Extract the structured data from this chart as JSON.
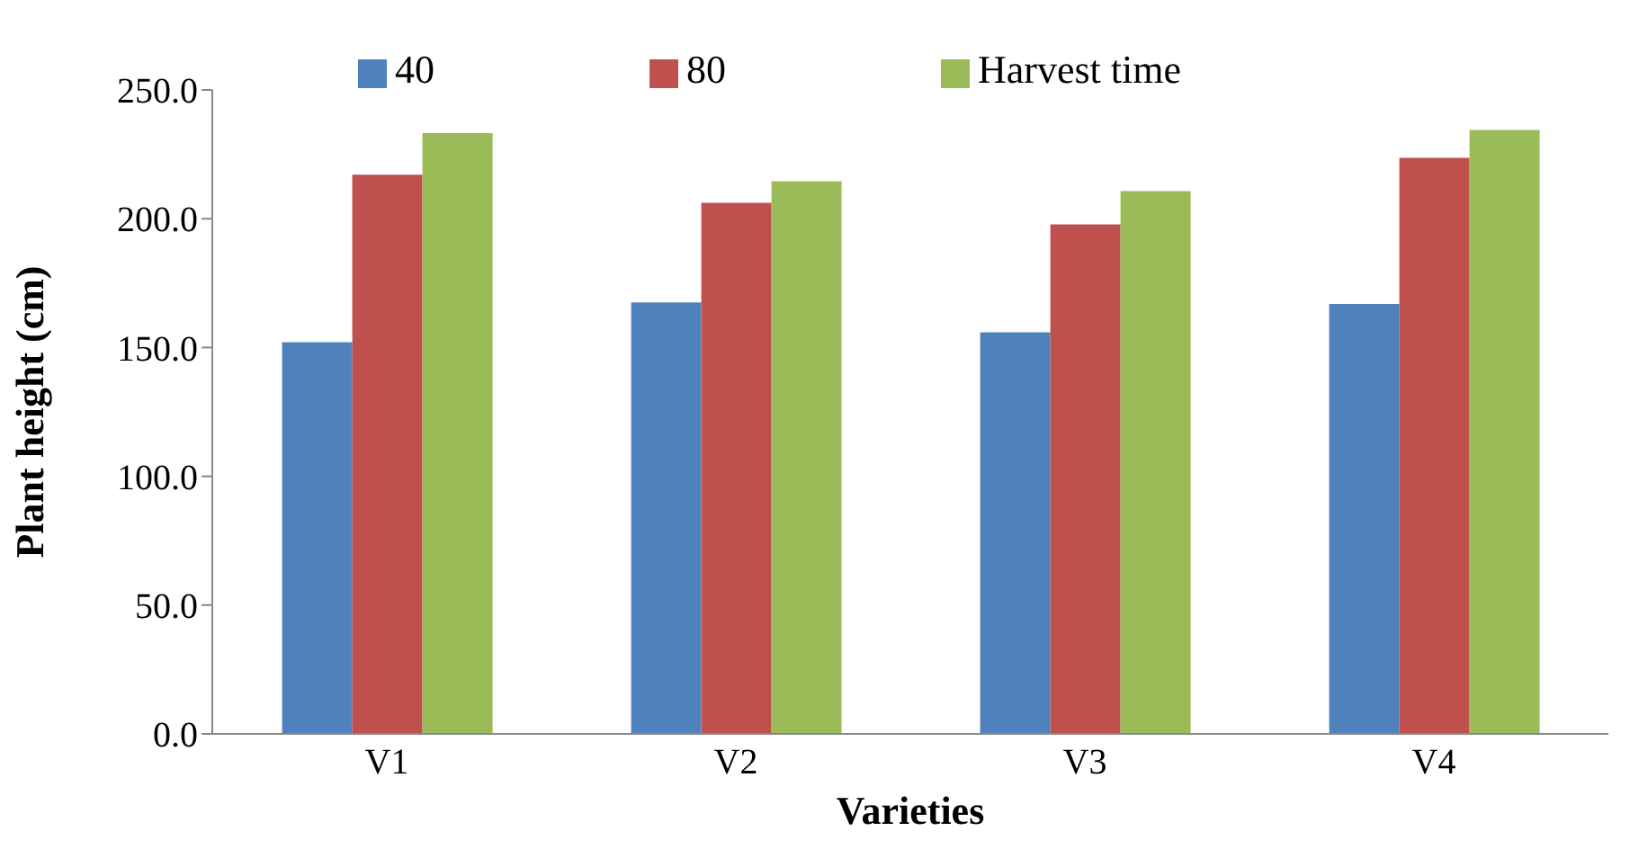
{
  "chart_data": {
    "type": "bar",
    "xlabel": "Varieties",
    "ylabel": "Plant height (cm)",
    "categories": [
      "V1",
      "V2",
      "V3",
      "V4"
    ],
    "series": [
      {
        "name": "40",
        "color": "#4f81bd",
        "values": [
          152.1,
          167.5,
          155.9,
          166.9
        ]
      },
      {
        "name": "80",
        "color": "#c0504d",
        "values": [
          217.1,
          206.2,
          197.8,
          223.6
        ]
      },
      {
        "name": "Harvest time",
        "color": "#9bbb59",
        "values": [
          233.2,
          214.6,
          210.7,
          234.5
        ]
      }
    ],
    "ylim": [
      0,
      250
    ],
    "yticks": [
      {
        "value": 0,
        "label": "0.0"
      },
      {
        "value": 50,
        "label": "50.0"
      },
      {
        "value": 100,
        "label": "100.0"
      },
      {
        "value": 150,
        "label": "150.0"
      },
      {
        "value": 200,
        "label": "200.0"
      },
      {
        "value": 250,
        "label": "250.0"
      }
    ],
    "grid": false,
    "legend": "top"
  }
}
